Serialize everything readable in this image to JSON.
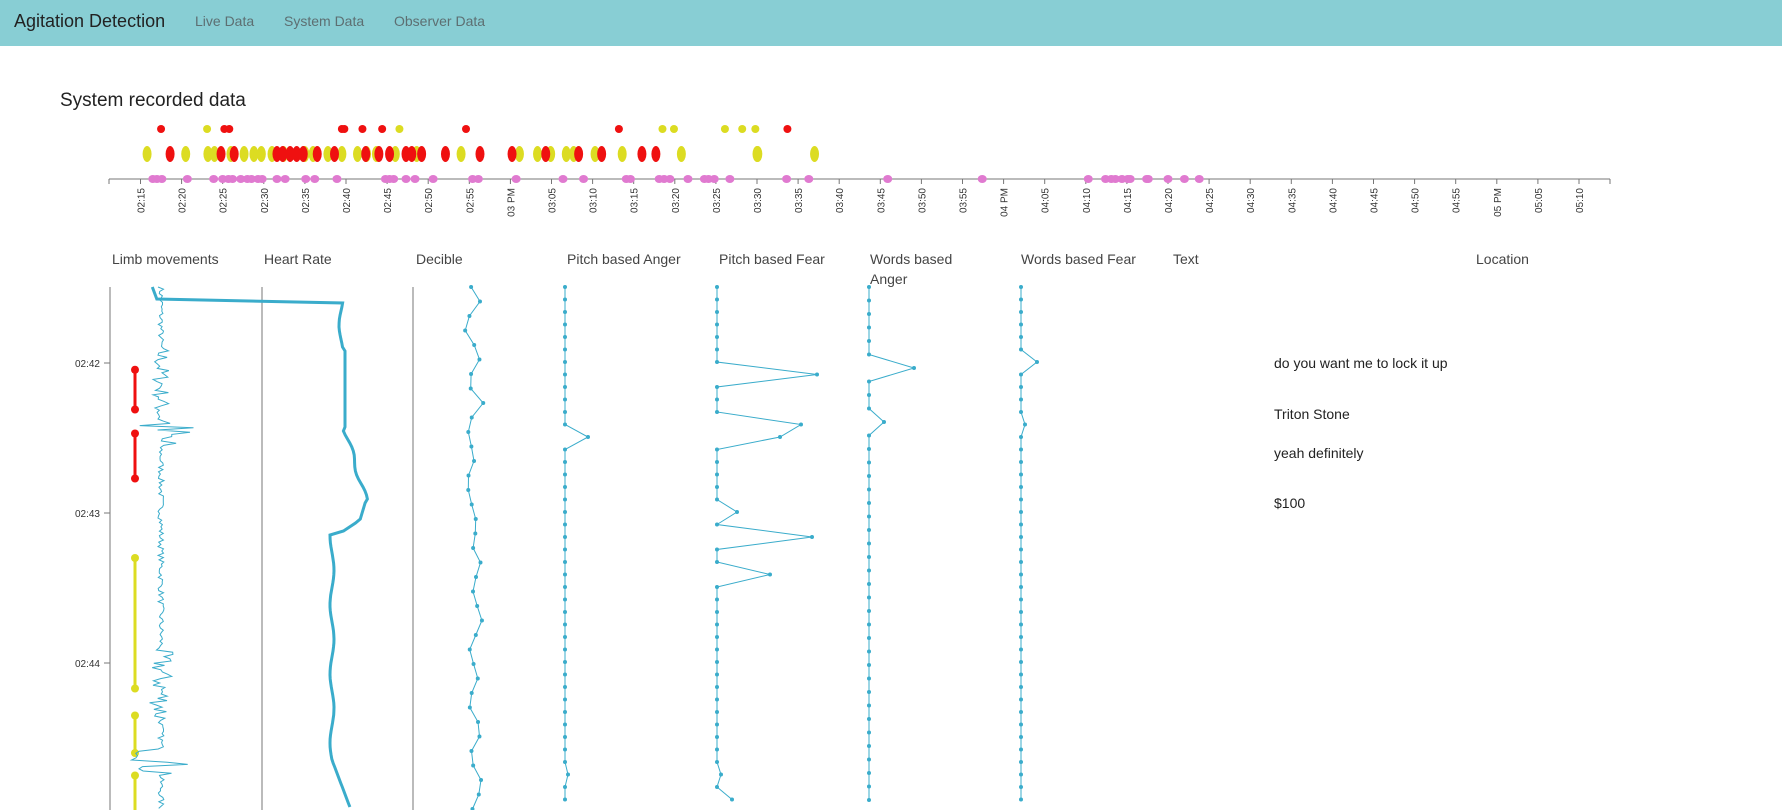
{
  "navbar": {
    "brand": "Agitation Detection",
    "links": [
      "Live Data",
      "System Data",
      "Observer Data"
    ]
  },
  "page": {
    "title": "System recorded data",
    "colors": {
      "navbar": "#88ced4",
      "line": "#3aaccb",
      "red": "#ef1010",
      "yellow": "#dcdc22",
      "pink": "#e07ad0"
    }
  },
  "timeline": {
    "ticks": [
      "02:15",
      "02:20",
      "02:25",
      "02:30",
      "02:35",
      "02:40",
      "02:45",
      "02:50",
      "02:55",
      "03 PM",
      "03:05",
      "03:10",
      "03:15",
      "03:20",
      "03:25",
      "03:30",
      "03:35",
      "03:40",
      "03:45",
      "03:50",
      "03:55",
      "04 PM",
      "04:05",
      "04:10",
      "04:15",
      "04:20",
      "04:25",
      "04:30",
      "04:35",
      "04:40",
      "04:45",
      "04:50",
      "04:55",
      "05 PM",
      "05:05",
      "05:10"
    ],
    "row1_red": [
      2.5,
      10.2,
      10.8,
      24.5,
      24.8,
      27.0,
      29.4,
      39.6,
      58.2,
      78.7
    ],
    "row1_yellow": [
      8.1,
      31.5,
      63.5,
      64.9,
      71.1,
      73.2,
      74.8
    ],
    "row2_red": [
      3.6,
      9.8,
      11.4,
      16.6,
      17.3,
      18.2,
      19.0,
      19.8,
      21.5,
      23.6,
      27.4,
      29.0,
      30.3,
      32.3,
      33.0,
      34.2,
      37.1,
      41.3,
      45.2,
      49.3,
      53.3,
      56.1,
      61.0,
      62.7
    ],
    "row2_yellow": [
      0.8,
      5.5,
      8.2,
      9.0,
      11.0,
      12.6,
      13.8,
      14.7,
      16.0,
      17.4,
      20.0,
      21.0,
      22.8,
      24.5,
      26.4,
      27.5,
      28.7,
      31.0,
      33.6,
      39.0,
      46.1,
      48.3,
      49.9,
      51.8,
      52.7,
      55.3,
      58.6,
      65.8,
      75.0,
      75.1,
      82.0
    ],
    "row3_pink": [
      1.5,
      2.0,
      2.6,
      5.7,
      8.9,
      10.0,
      10.7,
      11.2,
      12.2,
      13.0,
      13.5,
      14.3,
      14.8,
      16.6,
      17.6,
      20.1,
      21.2,
      23.9,
      29.8,
      30.3,
      30.8,
      32.3,
      33.4,
      35.6,
      40.4,
      41.1,
      45.7,
      51.4,
      53.9,
      59.1,
      59.6,
      63.1,
      63.7,
      64.4,
      66.6,
      68.6,
      69.1,
      69.8,
      71.7,
      78.6,
      81.3,
      90.9,
      102.4,
      115.3,
      117.4,
      118.1,
      118.6,
      119.4,
      120.1,
      120.4,
      122.4,
      122.6,
      125.0,
      127.0,
      128.8
    ]
  },
  "columns": {
    "limb": "Limb movements",
    "heart": "Heart Rate",
    "decibel": "Decible",
    "pitch_anger": "Pitch based Anger",
    "pitch_fear": "Pitch based Fear",
    "words_anger": "Words based Anger",
    "words_fear": "Words based Fear",
    "text": "Text",
    "location": "Location"
  },
  "time_axis": [
    "02:42",
    "02:43",
    "02:44"
  ],
  "limb_segments": [
    {
      "color": "red",
      "from": 0.045,
      "to": 0.31
    },
    {
      "color": "red",
      "from": 0.47,
      "to": 0.77
    },
    {
      "color": "yellow",
      "from": 1.3,
      "to": 2.17
    },
    {
      "color": "yellow",
      "from": 2.35,
      "to": 2.6
    },
    {
      "color": "yellow",
      "from": 2.75,
      "to": 3.05
    }
  ],
  "transcript": [
    {
      "time": 0.0,
      "text": "do you want me to lock it up"
    },
    {
      "time": 0.34,
      "text": "Triton Stone"
    },
    {
      "time": 0.6,
      "text": "yeah definitely"
    },
    {
      "time": 0.93,
      "text": "$100"
    }
  ]
}
